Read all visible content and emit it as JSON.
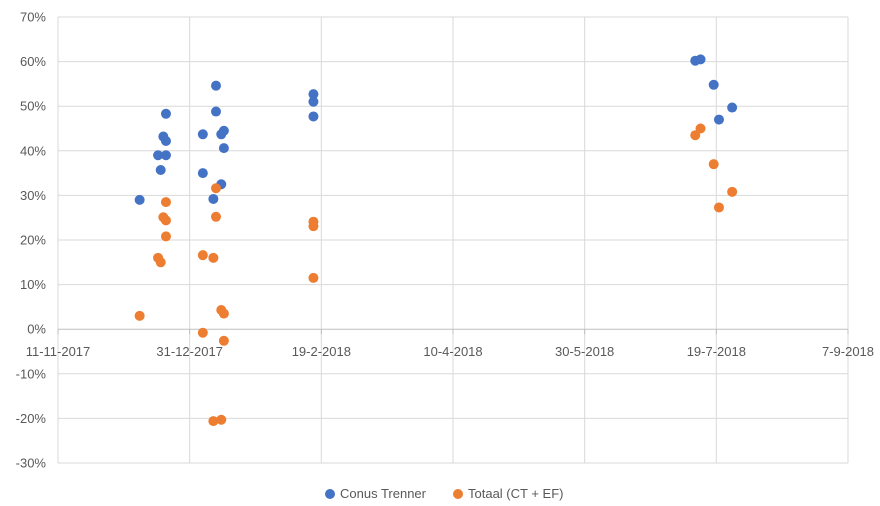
{
  "chart_data": {
    "type": "scatter",
    "x_axis": {
      "kind": "date",
      "range": [
        "2017-11-11",
        "2018-09-07"
      ],
      "ticks": [
        {
          "date": "2017-11-11",
          "label": "11-11-2017"
        },
        {
          "date": "2017-12-31",
          "label": "31-12-2017"
        },
        {
          "date": "2018-02-19",
          "label": "19-2-2018"
        },
        {
          "date": "2018-04-10",
          "label": "10-4-2018"
        },
        {
          "date": "2018-05-30",
          "label": "30-5-2018"
        },
        {
          "date": "2018-07-19",
          "label": "19-7-2018"
        },
        {
          "date": "2018-09-07",
          "label": "7-9-2018"
        }
      ]
    },
    "y_axis": {
      "range": [
        -0.3,
        0.7
      ],
      "ticks": [
        {
          "value": 0.7,
          "label": "70%"
        },
        {
          "value": 0.6,
          "label": "60%"
        },
        {
          "value": 0.5,
          "label": "50%"
        },
        {
          "value": 0.4,
          "label": "40%"
        },
        {
          "value": 0.3,
          "label": "30%"
        },
        {
          "value": 0.2,
          "label": "20%"
        },
        {
          "value": 0.1,
          "label": "10%"
        },
        {
          "value": 0.0,
          "label": "0%"
        },
        {
          "value": -0.1,
          "label": "-10%"
        },
        {
          "value": -0.2,
          "label": "-20%"
        },
        {
          "value": -0.3,
          "label": "-30%"
        }
      ]
    },
    "grid": "vertical and horizontal",
    "legend_position": "bottom",
    "series": [
      {
        "name": "Conus Trenner",
        "color": "#4472c4",
        "points": [
          {
            "x": "2017-12-12",
            "y": 0.29
          },
          {
            "x": "2017-12-19",
            "y": 0.39
          },
          {
            "x": "2017-12-20",
            "y": 0.357
          },
          {
            "x": "2017-12-21",
            "y": 0.432
          },
          {
            "x": "2017-12-22",
            "y": 0.483
          },
          {
            "x": "2017-12-22",
            "y": 0.422
          },
          {
            "x": "2017-12-22",
            "y": 0.39
          },
          {
            "x": "2018-01-05",
            "y": 0.35
          },
          {
            "x": "2018-01-05",
            "y": 0.437
          },
          {
            "x": "2018-01-09",
            "y": 0.292
          },
          {
            "x": "2018-01-10",
            "y": 0.546
          },
          {
            "x": "2018-01-10",
            "y": 0.488
          },
          {
            "x": "2018-01-12",
            "y": 0.325
          },
          {
            "x": "2018-01-12",
            "y": 0.437
          },
          {
            "x": "2018-01-13",
            "y": 0.406
          },
          {
            "x": "2018-01-13",
            "y": 0.445
          },
          {
            "x": "2018-02-16",
            "y": 0.527
          },
          {
            "x": "2018-02-16",
            "y": 0.51
          },
          {
            "x": "2018-02-16",
            "y": 0.477
          },
          {
            "x": "2018-07-11",
            "y": 0.602
          },
          {
            "x": "2018-07-13",
            "y": 0.605
          },
          {
            "x": "2018-07-18",
            "y": 0.548
          },
          {
            "x": "2018-07-20",
            "y": 0.47
          },
          {
            "x": "2018-07-25",
            "y": 0.497
          }
        ]
      },
      {
        "name": "Totaal (CT + EF)",
        "color": "#ed7d31",
        "points": [
          {
            "x": "2017-12-12",
            "y": 0.03
          },
          {
            "x": "2017-12-19",
            "y": 0.16
          },
          {
            "x": "2017-12-20",
            "y": 0.15
          },
          {
            "x": "2017-12-21",
            "y": 0.251
          },
          {
            "x": "2017-12-22",
            "y": 0.285
          },
          {
            "x": "2017-12-22",
            "y": 0.244
          },
          {
            "x": "2017-12-22",
            "y": 0.208
          },
          {
            "x": "2018-01-05",
            "y": 0.166
          },
          {
            "x": "2018-01-05",
            "y": -0.008
          },
          {
            "x": "2018-01-09",
            "y": 0.16
          },
          {
            "x": "2018-01-09",
            "y": -0.206
          },
          {
            "x": "2018-01-10",
            "y": 0.316
          },
          {
            "x": "2018-01-10",
            "y": 0.252
          },
          {
            "x": "2018-01-12",
            "y": 0.043
          },
          {
            "x": "2018-01-12",
            "y": -0.203
          },
          {
            "x": "2018-01-13",
            "y": 0.035
          },
          {
            "x": "2018-01-13",
            "y": -0.026
          },
          {
            "x": "2018-02-16",
            "y": 0.241
          },
          {
            "x": "2018-02-16",
            "y": 0.231
          },
          {
            "x": "2018-02-16",
            "y": 0.115
          },
          {
            "x": "2018-07-11",
            "y": 0.435
          },
          {
            "x": "2018-07-13",
            "y": 0.45
          },
          {
            "x": "2018-07-18",
            "y": 0.37
          },
          {
            "x": "2018-07-20",
            "y": 0.273
          },
          {
            "x": "2018-07-25",
            "y": 0.308
          }
        ]
      }
    ]
  }
}
